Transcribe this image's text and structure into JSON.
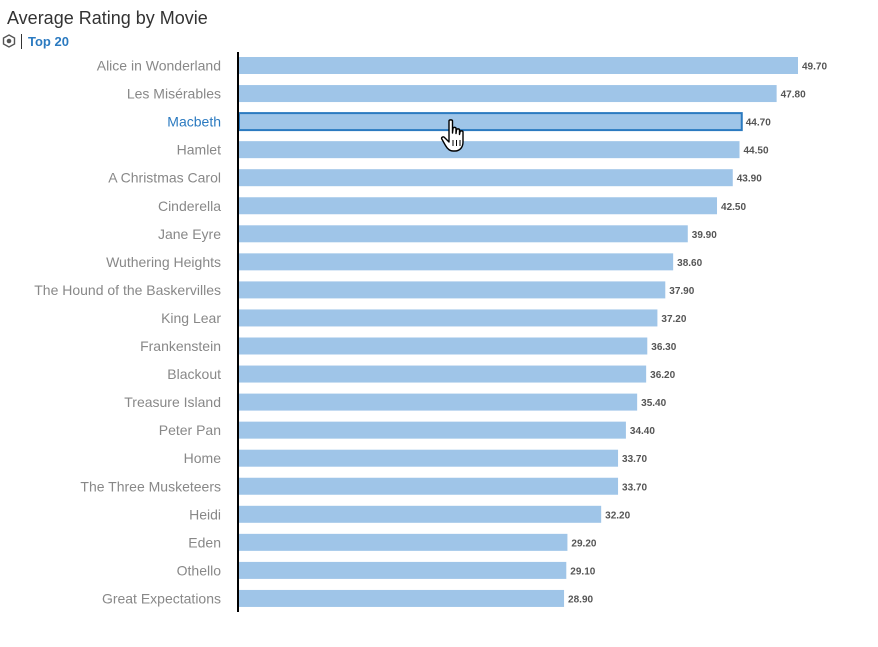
{
  "header": {
    "title": "Average Rating by Movie",
    "filter_label": "Top 20"
  },
  "colors": {
    "bar": "#9fc5e8",
    "bar_highlight_stroke": "#2b7ac0",
    "label_highlight": "#2b7ac0",
    "axis": "#000000"
  },
  "chart_data": {
    "type": "bar",
    "orientation": "horizontal",
    "title": "Average Rating by Movie",
    "xlabel": "",
    "ylabel": "",
    "xlim": [
      0,
      49.7
    ],
    "grid": false,
    "highlighted_category": "Macbeth",
    "categories": [
      "Alice in Wonderland",
      "Les Misérables",
      "Macbeth",
      "Hamlet",
      "A Christmas Carol",
      "Cinderella",
      "Jane Eyre",
      "Wuthering Heights",
      "The Hound of the Baskervilles",
      "King Lear",
      "Frankenstein",
      "Blackout",
      "Treasure Island",
      "Peter Pan",
      "Home",
      "The Three Musketeers",
      "Heidi",
      "Eden",
      "Othello",
      "Great Expectations"
    ],
    "values": [
      49.7,
      47.8,
      44.7,
      44.5,
      43.9,
      42.5,
      39.9,
      38.6,
      37.9,
      37.2,
      36.3,
      36.2,
      35.4,
      34.4,
      33.7,
      33.7,
      32.2,
      29.2,
      29.1,
      28.9
    ],
    "value_labels": [
      "49.70",
      "47.80",
      "44.70",
      "44.50",
      "43.90",
      "42.50",
      "39.90",
      "38.60",
      "37.90",
      "37.20",
      "36.30",
      "36.20",
      "35.40",
      "34.40",
      "33.70",
      "33.70",
      "32.20",
      "29.20",
      "29.10",
      "28.90"
    ]
  }
}
